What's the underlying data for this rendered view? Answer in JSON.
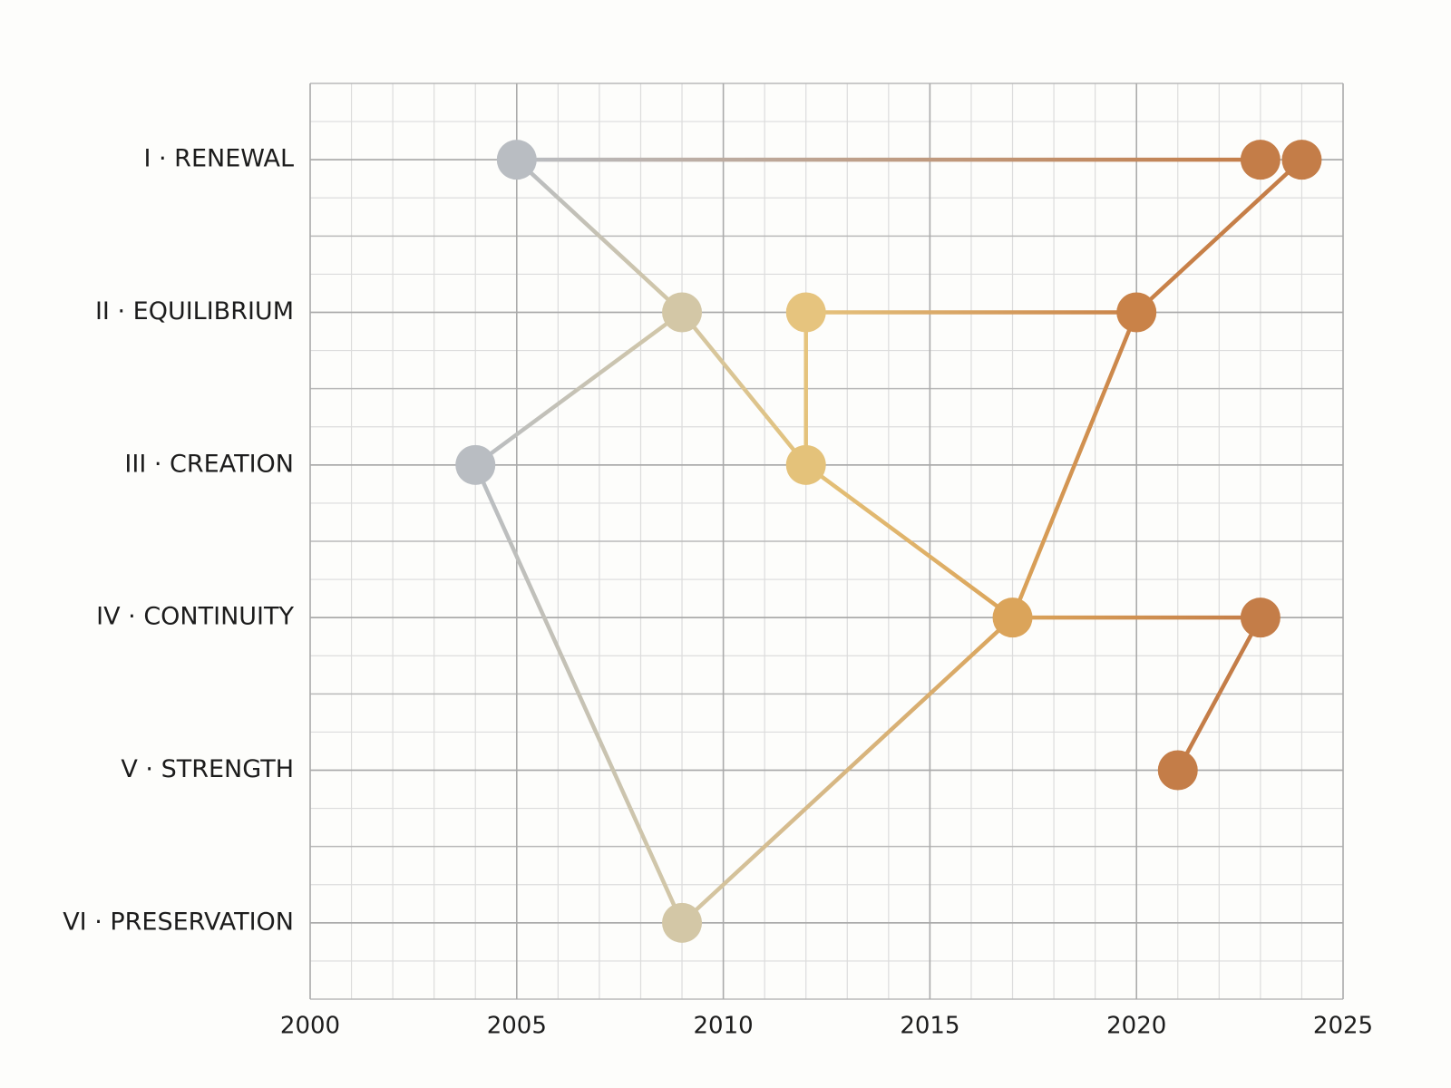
{
  "chart_data": {
    "type": "network",
    "categories": [
      "I · RENEWAL",
      "II · EQUILIBRIUM",
      "III · CREATION",
      "IV · CONTINUITY",
      "V · STRENGTH",
      "VI · PRESERVATION"
    ],
    "nodes": {
      "x": [
        2005,
        2023,
        2024,
        2009,
        2012,
        2020,
        2004,
        2012,
        2017,
        2023,
        2021,
        2009
      ],
      "y": [
        "I · RENEWAL",
        "I · RENEWAL",
        "I · RENEWAL",
        "II · EQUILIBRIUM",
        "II · EQUILIBRIUM",
        "II · EQUILIBRIUM",
        "III · CREATION",
        "III · CREATION",
        "IV · CONTINUITY",
        "IV · CONTINUITY",
        "V · STRENGTH",
        "VI · PRESERVATION"
      ],
      "colors": [
        "#b9bdc2",
        "#c47d48",
        "#c47d48",
        "#d3c7a6",
        "#e6c47e",
        "#c98248",
        "#b9bdc2",
        "#e4c27a",
        "#dba45a",
        "#c47d48",
        "#c47d48",
        "#d3c7a6"
      ]
    },
    "edges": [
      [
        0,
        1
      ],
      [
        0,
        3
      ],
      [
        3,
        6
      ],
      [
        3,
        7
      ],
      [
        7,
        4
      ],
      [
        4,
        5
      ],
      [
        5,
        2
      ],
      [
        5,
        8
      ],
      [
        7,
        8
      ],
      [
        6,
        11
      ],
      [
        11,
        8
      ],
      [
        8,
        9
      ],
      [
        9,
        10
      ]
    ],
    "xlim": [
      2000,
      2025
    ],
    "xticks": [
      2000,
      2005,
      2010,
      2015,
      2020,
      2025
    ],
    "grid": true
  }
}
